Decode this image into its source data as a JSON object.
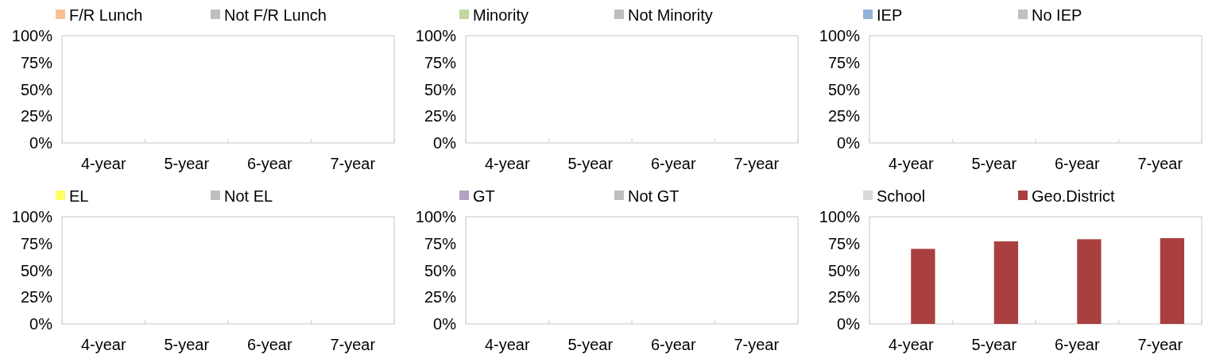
{
  "chart_data": [
    {
      "type": "bar",
      "categories": [
        "4-year",
        "5-year",
        "6-year",
        "7-year"
      ],
      "ylim": [
        0,
        100
      ],
      "yticks": [
        {
          "value": 0,
          "label": "0%"
        },
        {
          "value": 25,
          "label": "25%"
        },
        {
          "value": 50,
          "label": "50%"
        },
        {
          "value": 75,
          "label": "75%"
        },
        {
          "value": 100,
          "label": "100%"
        }
      ],
      "legend": "top",
      "grid": false,
      "series": [
        {
          "name": "F/R Lunch",
          "color": "#fac090",
          "values": [
            null,
            null,
            null,
            null
          ]
        },
        {
          "name": "Not F/R Lunch",
          "color": "#bfbfbf",
          "values": [
            null,
            null,
            null,
            null
          ]
        }
      ]
    },
    {
      "type": "bar",
      "categories": [
        "4-year",
        "5-year",
        "6-year",
        "7-year"
      ],
      "ylim": [
        0,
        100
      ],
      "yticks": [
        {
          "value": 0,
          "label": "0%"
        },
        {
          "value": 25,
          "label": "25%"
        },
        {
          "value": 50,
          "label": "50%"
        },
        {
          "value": 75,
          "label": "75%"
        },
        {
          "value": 100,
          "label": "100%"
        }
      ],
      "legend": "top",
      "grid": false,
      "series": [
        {
          "name": "Minority",
          "color": "#c3d69b",
          "values": [
            null,
            null,
            null,
            null
          ]
        },
        {
          "name": "Not Minority",
          "color": "#bfbfbf",
          "values": [
            null,
            null,
            null,
            null
          ]
        }
      ]
    },
    {
      "type": "bar",
      "categories": [
        "4-year",
        "5-year",
        "6-year",
        "7-year"
      ],
      "ylim": [
        0,
        100
      ],
      "yticks": [
        {
          "value": 0,
          "label": "0%"
        },
        {
          "value": 25,
          "label": "25%"
        },
        {
          "value": 50,
          "label": "50%"
        },
        {
          "value": 75,
          "label": "75%"
        },
        {
          "value": 100,
          "label": "100%"
        }
      ],
      "legend": "top",
      "grid": false,
      "series": [
        {
          "name": "IEP",
          "color": "#95b3d7",
          "values": [
            null,
            null,
            null,
            null
          ]
        },
        {
          "name": "No IEP",
          "color": "#bfbfbf",
          "values": [
            null,
            null,
            null,
            null
          ]
        }
      ]
    },
    {
      "type": "bar",
      "categories": [
        "4-year",
        "5-year",
        "6-year",
        "7-year"
      ],
      "ylim": [
        0,
        100
      ],
      "yticks": [
        {
          "value": 0,
          "label": "0%"
        },
        {
          "value": 25,
          "label": "25%"
        },
        {
          "value": 50,
          "label": "50%"
        },
        {
          "value": 75,
          "label": "75%"
        },
        {
          "value": 100,
          "label": "100%"
        }
      ],
      "legend": "top",
      "grid": false,
      "series": [
        {
          "name": "EL",
          "color": "#ffff66",
          "values": [
            null,
            null,
            null,
            null
          ]
        },
        {
          "name": "Not EL",
          "color": "#bfbfbf",
          "values": [
            null,
            null,
            null,
            null
          ]
        }
      ]
    },
    {
      "type": "bar",
      "categories": [
        "4-year",
        "5-year",
        "6-year",
        "7-year"
      ],
      "ylim": [
        0,
        100
      ],
      "yticks": [
        {
          "value": 0,
          "label": "0%"
        },
        {
          "value": 25,
          "label": "25%"
        },
        {
          "value": 50,
          "label": "50%"
        },
        {
          "value": 75,
          "label": "75%"
        },
        {
          "value": 100,
          "label": "100%"
        }
      ],
      "legend": "top",
      "grid": false,
      "series": [
        {
          "name": "GT",
          "color": "#b3a2c7",
          "values": [
            null,
            null,
            null,
            null
          ]
        },
        {
          "name": "Not GT",
          "color": "#bfbfbf",
          "values": [
            null,
            null,
            null,
            null
          ]
        }
      ]
    },
    {
      "type": "bar",
      "categories": [
        "4-year",
        "5-year",
        "6-year",
        "7-year"
      ],
      "ylim": [
        0,
        100
      ],
      "yticks": [
        {
          "value": 0,
          "label": "0%"
        },
        {
          "value": 25,
          "label": "25%"
        },
        {
          "value": 50,
          "label": "50%"
        },
        {
          "value": 75,
          "label": "75%"
        },
        {
          "value": 100,
          "label": "100%"
        }
      ],
      "legend": "top",
      "grid": false,
      "series": [
        {
          "name": "School",
          "color": "#d9d9d9",
          "values": [
            null,
            null,
            null,
            null
          ]
        },
        {
          "name": "Geo.District",
          "color": "#a93f3f",
          "values": [
            70,
            77,
            79,
            80
          ]
        }
      ]
    }
  ]
}
